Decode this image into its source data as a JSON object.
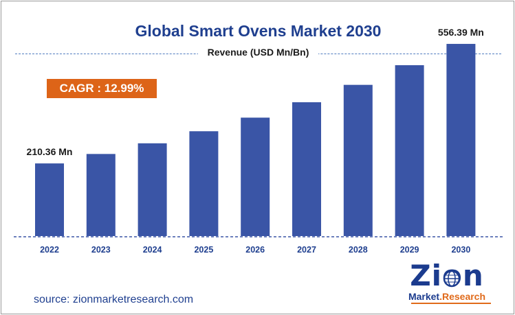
{
  "title": "Global Smart Ovens Market 2030",
  "subtitle": "Revenue (USD Mn/Bn)",
  "cagr": "CAGR : 12.99%",
  "source": "source: zionmarketresearch.com",
  "logo": {
    "word": "Zion",
    "sub_a": "Market",
    "sub_b": ".Research"
  },
  "colors": {
    "bar": "#3a55a6",
    "title": "#1f3f8f",
    "badge": "#dd6418",
    "axis": "#3a55a6"
  },
  "chart_data": {
    "type": "bar",
    "categories": [
      "2022",
      "2023",
      "2024",
      "2025",
      "2026",
      "2027",
      "2028",
      "2029",
      "2030"
    ],
    "values": [
      210.36,
      237.7,
      268.6,
      303.5,
      342.9,
      387.5,
      437.8,
      494.7,
      556.39
    ],
    "data_labels": {
      "0": "210.36 Mn",
      "8": "556.39 Mn"
    },
    "title": "Global Smart Ovens Market 2030",
    "ylabel": "Revenue (USD Mn/Bn)",
    "ylim": [
      0,
      600
    ],
    "grid": false,
    "legend": "none"
  }
}
